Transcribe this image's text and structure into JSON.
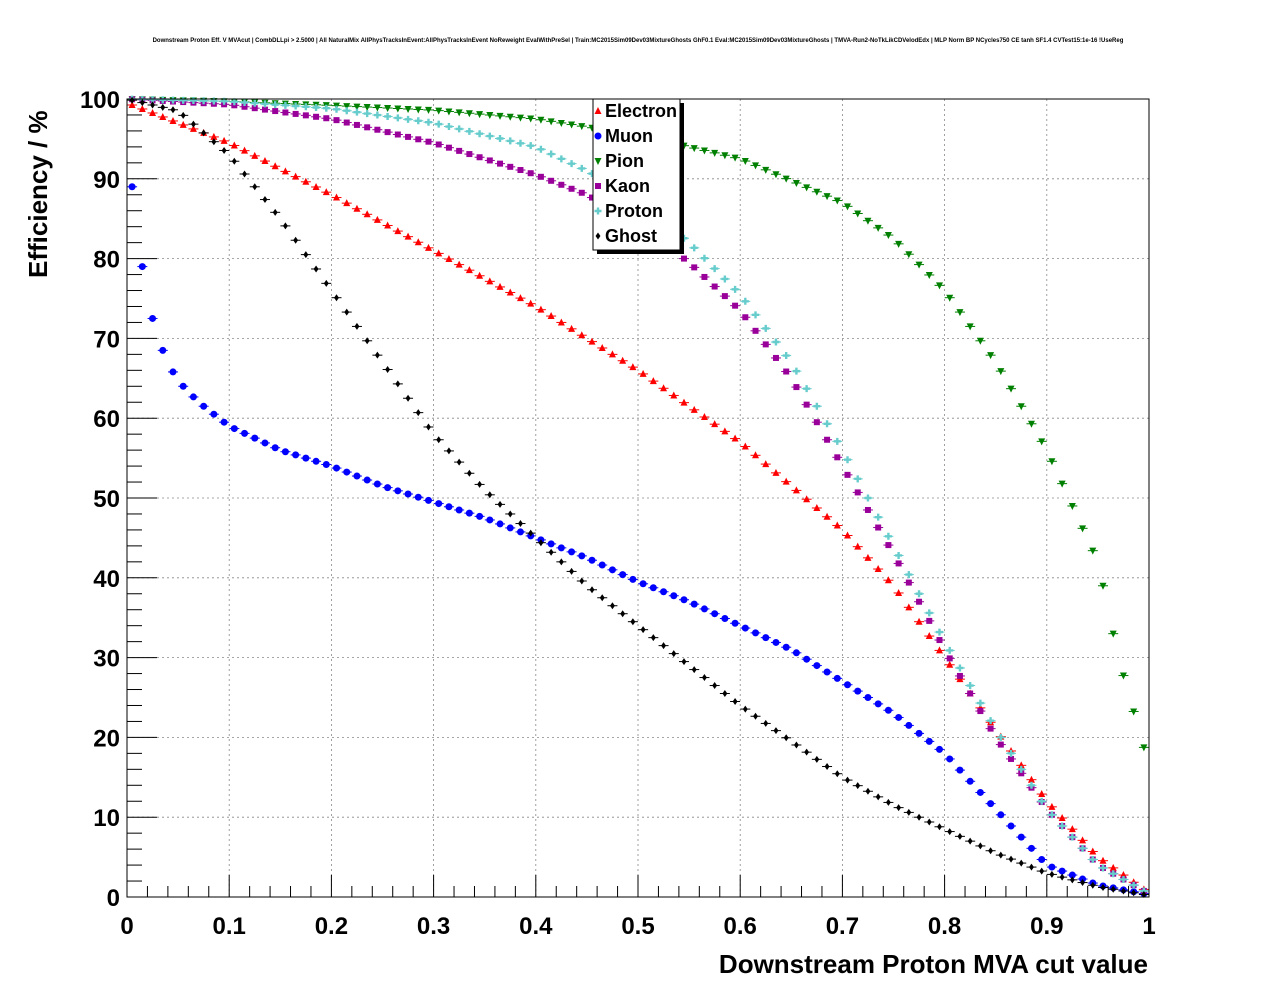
{
  "chart_data": {
    "type": "scatter",
    "title": "Downstream Proton Eff. V MVAcut | CombDLLpi > 2.5000 | All NaturalMix AllPhysTracksInEvent:AllPhysTracksInEvent NoReweight EvalWithPreSel | Train:MC2015Sim09Dev03MixtureGhosts GhF0.1 Eval:MC2015Sim09Dev03MixtureGhosts | TMVA-Run2-NoTkLikCDVelodEdx | MLP Norm BP NCycles750 CE tanh SF1.4 CVTest15:1e-16 !UseReg",
    "xlabel": "Downstream Proton MVA cut value",
    "ylabel": "Efficiency / %",
    "xlim": [
      0,
      1
    ],
    "ylim": [
      0,
      100
    ],
    "x_ticks": [
      "0",
      "0.1",
      "0.2",
      "0.3",
      "0.4",
      "0.5",
      "0.6",
      "0.7",
      "0.8",
      "0.9",
      "1"
    ],
    "y_ticks": [
      "0",
      "10",
      "20",
      "30",
      "40",
      "50",
      "60",
      "70",
      "80",
      "90",
      "100"
    ],
    "grid": true,
    "legend_position": "top-center",
    "x_step": 0.01,
    "series": [
      {
        "name": "Electron",
        "color": "#ff0000",
        "marker": "triangle-up",
        "points": [
          [
            0,
            99.5
          ],
          [
            0.1,
            94.5
          ],
          [
            0.2,
            88
          ],
          [
            0.3,
            81
          ],
          [
            0.4,
            74
          ],
          [
            0.5,
            66
          ],
          [
            0.6,
            57
          ],
          [
            0.7,
            46
          ],
          [
            0.75,
            39
          ],
          [
            0.8,
            30
          ],
          [
            0.85,
            21
          ],
          [
            0.9,
            12
          ],
          [
            0.95,
            5
          ],
          [
            1,
            0.5
          ]
        ]
      },
      {
        "name": "Muon",
        "color": "#0000ff",
        "marker": "circle",
        "points": [
          [
            0,
            92
          ],
          [
            0.01,
            86
          ],
          [
            0.015,
            79
          ],
          [
            0.025,
            72.5
          ],
          [
            0.035,
            68.5
          ],
          [
            0.045,
            65.8
          ],
          [
            0.055,
            64
          ],
          [
            0.07,
            62
          ],
          [
            0.1,
            59
          ],
          [
            0.15,
            56
          ],
          [
            0.2,
            54
          ],
          [
            0.25,
            51.5
          ],
          [
            0.3,
            49.5
          ],
          [
            0.35,
            47.5
          ],
          [
            0.4,
            45
          ],
          [
            0.45,
            42.5
          ],
          [
            0.5,
            39.5
          ],
          [
            0.55,
            37
          ],
          [
            0.6,
            34
          ],
          [
            0.65,
            31
          ],
          [
            0.7,
            27
          ],
          [
            0.75,
            23
          ],
          [
            0.8,
            18
          ],
          [
            0.85,
            11
          ],
          [
            0.9,
            4
          ],
          [
            0.95,
            1.5
          ],
          [
            1,
            0.3
          ]
        ]
      },
      {
        "name": "Pion",
        "color": "#008000",
        "marker": "triangle-down",
        "points": [
          [
            0,
            100
          ],
          [
            0.1,
            99.7
          ],
          [
            0.2,
            99.2
          ],
          [
            0.3,
            98.6
          ],
          [
            0.4,
            97.5
          ],
          [
            0.5,
            95.5
          ],
          [
            0.6,
            92.5
          ],
          [
            0.7,
            87
          ],
          [
            0.75,
            82.5
          ],
          [
            0.8,
            76
          ],
          [
            0.85,
            67
          ],
          [
            0.9,
            56
          ],
          [
            0.95,
            42
          ],
          [
            0.97,
            30
          ],
          [
            1,
            16.5
          ]
        ]
      },
      {
        "name": "Kaon",
        "color": "#990099",
        "marker": "square",
        "points": [
          [
            0,
            100
          ],
          [
            0.1,
            99.3
          ],
          [
            0.2,
            97.5
          ],
          [
            0.3,
            94.5
          ],
          [
            0.4,
            90.5
          ],
          [
            0.45,
            88
          ],
          [
            0.5,
            84.5
          ],
          [
            0.55,
            79.5
          ],
          [
            0.6,
            73.5
          ],
          [
            0.65,
            65
          ],
          [
            0.7,
            54
          ],
          [
            0.75,
            43
          ],
          [
            0.8,
            31
          ],
          [
            0.85,
            20
          ],
          [
            0.9,
            11
          ],
          [
            0.95,
            4
          ],
          [
            1,
            0.4
          ]
        ]
      },
      {
        "name": "Proton",
        "color": "#66cccc",
        "marker": "cross",
        "points": [
          [
            0,
            100
          ],
          [
            0.1,
            99.7
          ],
          [
            0.2,
            98.8
          ],
          [
            0.3,
            97
          ],
          [
            0.4,
            94
          ],
          [
            0.45,
            91
          ],
          [
            0.5,
            87.5
          ],
          [
            0.55,
            82
          ],
          [
            0.6,
            75.5
          ],
          [
            0.65,
            67
          ],
          [
            0.7,
            56
          ],
          [
            0.75,
            44
          ],
          [
            0.8,
            32
          ],
          [
            0.85,
            21
          ],
          [
            0.9,
            11
          ],
          [
            0.95,
            4
          ],
          [
            1,
            0.4
          ]
        ]
      },
      {
        "name": "Ghost",
        "color": "#000000",
        "marker": "diamond",
        "points": [
          [
            0,
            100
          ],
          [
            0.05,
            98.5
          ],
          [
            0.1,
            93
          ],
          [
            0.15,
            85
          ],
          [
            0.2,
            76
          ],
          [
            0.25,
            67
          ],
          [
            0.3,
            58
          ],
          [
            0.35,
            51
          ],
          [
            0.4,
            45
          ],
          [
            0.45,
            39
          ],
          [
            0.5,
            34
          ],
          [
            0.55,
            29
          ],
          [
            0.6,
            24
          ],
          [
            0.65,
            19.5
          ],
          [
            0.7,
            15
          ],
          [
            0.75,
            11.5
          ],
          [
            0.8,
            8.5
          ],
          [
            0.85,
            5.5
          ],
          [
            0.9,
            3
          ],
          [
            0.95,
            1.3
          ],
          [
            1,
            0.2
          ]
        ]
      }
    ]
  }
}
